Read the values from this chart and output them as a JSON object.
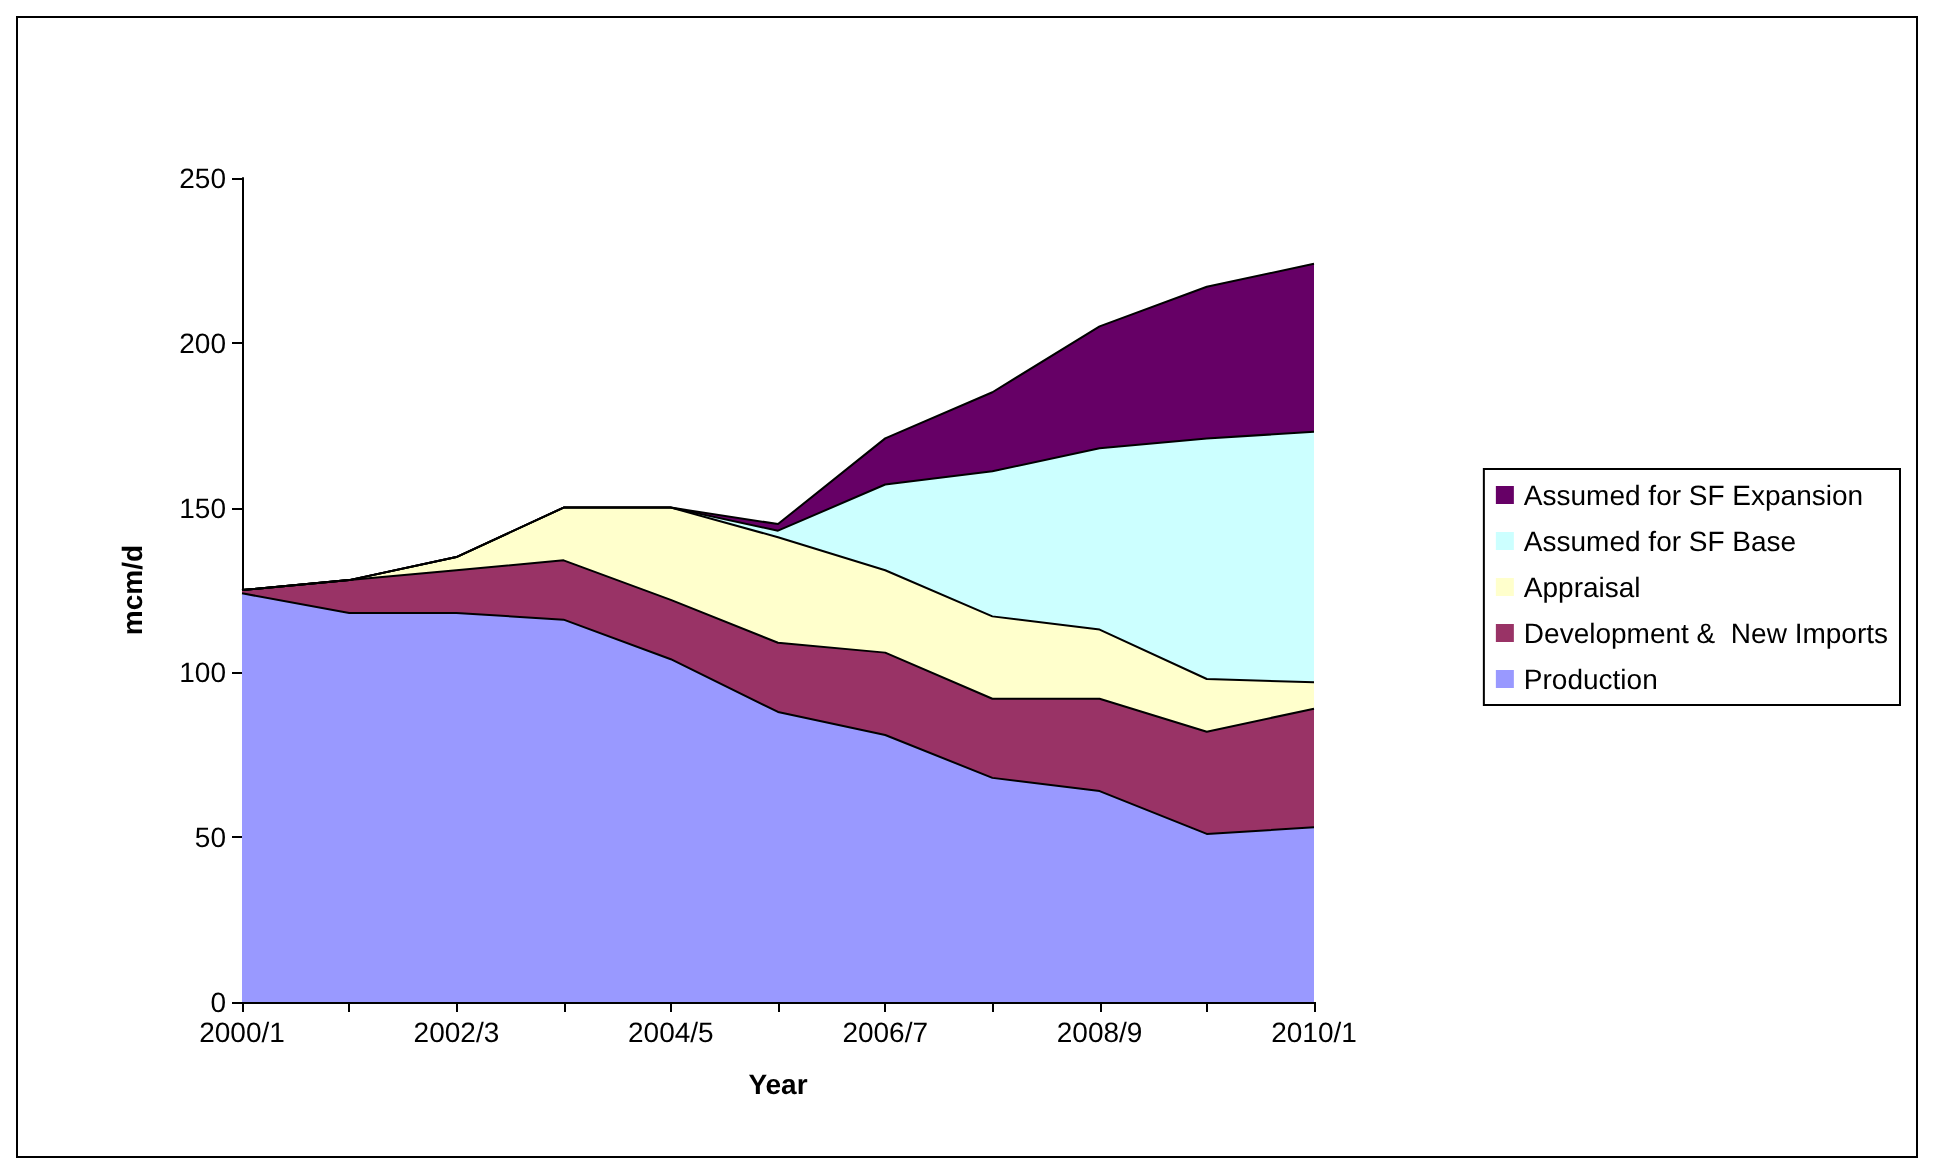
{
  "chart_data": {
    "type": "area",
    "stacked": true,
    "xlabel": "Year",
    "ylabel": "mcm/d",
    "categories": [
      "2000/1",
      null,
      "2002/3",
      null,
      "2004/5",
      null,
      "2006/7",
      null,
      "2008/9",
      null,
      "2010/1"
    ],
    "series": [
      {
        "name": "Production",
        "color": "#9999ff",
        "values": [
          124,
          118,
          118,
          116,
          104,
          88,
          81,
          68,
          64,
          51,
          53
        ]
      },
      {
        "name": "Development &  New Imports",
        "color": "#993366",
        "values": [
          1,
          10,
          13,
          18,
          18,
          21,
          25,
          24,
          28,
          31,
          36
        ]
      },
      {
        "name": "Appraisal",
        "color": "#ffffcc",
        "values": [
          0,
          0,
          4,
          16,
          28,
          32,
          25,
          25,
          21,
          16,
          8
        ]
      },
      {
        "name": "Assumed for SF Base",
        "color": "#ccffff",
        "values": [
          0,
          0,
          0,
          0,
          0,
          2,
          26,
          44,
          55,
          73,
          76
        ]
      },
      {
        "name": "Assumed for SF Expansion",
        "color": "#660066",
        "values": [
          0,
          0,
          0,
          0,
          0,
          2,
          14,
          24,
          37,
          46,
          51
        ]
      }
    ],
    "ylim": [
      0,
      250
    ],
    "yticks": [
      0,
      50,
      100,
      150,
      200,
      250
    ],
    "grid": false,
    "legend": "right"
  }
}
